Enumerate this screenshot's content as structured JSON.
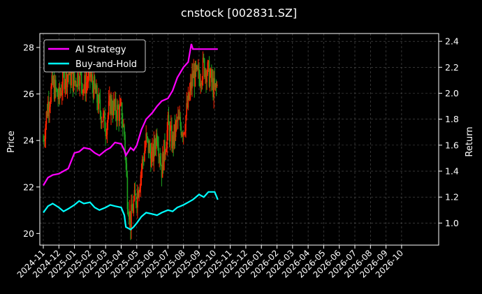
{
  "chart_data": {
    "type": "line",
    "title": "cnstock [002831.SZ]",
    "ylabel_left": "Price",
    "ylabel_right": "Return",
    "ylim_left": [
      19.5,
      28.6
    ],
    "ylim_right": [
      0.83,
      2.46
    ],
    "left_ticks": [
      20,
      22,
      24,
      26,
      28
    ],
    "right_ticks": [
      1.0,
      1.2,
      1.4,
      1.6,
      1.8,
      2.0,
      2.2,
      2.4
    ],
    "x_tick_labels": [
      "2024-11",
      "2024-12",
      "2025-01",
      "2025-02",
      "2025-03",
      "2025-04",
      "2025-05",
      "2025-06",
      "2025-07",
      "2025-08",
      "2025-09",
      "2025-10",
      "2025-11",
      "2025-12",
      "2026-01",
      "2026-02",
      "2026-03",
      "2026-04",
      "2026-05",
      "2026-06",
      "2026-07",
      "2026-08",
      "2026-09",
      "2026-10"
    ],
    "grid": true,
    "legend_position": "top-left",
    "price_candles": {
      "up_color": "#ff2200",
      "down_color": "#1fa01f",
      "closes": [
        [
          0.0,
          24.0
        ],
        [
          0.3,
          25.6
        ],
        [
          0.6,
          26.4
        ],
        [
          1.0,
          25.8
        ],
        [
          1.3,
          26.7
        ],
        [
          1.6,
          26.9
        ],
        [
          2.0,
          26.5
        ],
        [
          2.3,
          26.9
        ],
        [
          2.6,
          26.3
        ],
        [
          3.0,
          26.8
        ],
        [
          3.3,
          26.1
        ],
        [
          3.6,
          25.4
        ],
        [
          4.0,
          24.6
        ],
        [
          4.3,
          25.6
        ],
        [
          4.6,
          25.3
        ],
        [
          5.0,
          25.2
        ],
        [
          5.2,
          24.3
        ],
        [
          5.4,
          21.6
        ],
        [
          5.6,
          20.5
        ],
        [
          5.8,
          21.3
        ],
        [
          6.0,
          21.6
        ],
        [
          6.3,
          22.8
        ],
        [
          6.6,
          24.0
        ],
        [
          7.0,
          23.2
        ],
        [
          7.3,
          24.4
        ],
        [
          7.6,
          22.8
        ],
        [
          8.0,
          24.6
        ],
        [
          8.3,
          23.9
        ],
        [
          8.6,
          24.8
        ],
        [
          9.0,
          24.5
        ],
        [
          9.3,
          25.6
        ],
        [
          9.6,
          26.8
        ],
        [
          10.0,
          26.7
        ],
        [
          10.3,
          27.2
        ],
        [
          10.6,
          26.9
        ],
        [
          11.0,
          26.1
        ],
        [
          11.2,
          26.4
        ]
      ]
    },
    "series": [
      {
        "name": "AI Strategy",
        "color": "#ff00ff",
        "points": [
          [
            0.0,
            1.29
          ],
          [
            0.3,
            1.35
          ],
          [
            0.6,
            1.37
          ],
          [
            1.0,
            1.38
          ],
          [
            1.3,
            1.4
          ],
          [
            1.6,
            1.42
          ],
          [
            2.0,
            1.54
          ],
          [
            2.3,
            1.55
          ],
          [
            2.6,
            1.58
          ],
          [
            3.0,
            1.57
          ],
          [
            3.3,
            1.54
          ],
          [
            3.6,
            1.52
          ],
          [
            4.0,
            1.56
          ],
          [
            4.3,
            1.58
          ],
          [
            4.6,
            1.62
          ],
          [
            5.0,
            1.61
          ],
          [
            5.2,
            1.56
          ],
          [
            5.3,
            1.52
          ],
          [
            5.6,
            1.58
          ],
          [
            5.8,
            1.56
          ],
          [
            6.0,
            1.6
          ],
          [
            6.3,
            1.72
          ],
          [
            6.6,
            1.8
          ],
          [
            7.0,
            1.85
          ],
          [
            7.3,
            1.9
          ],
          [
            7.6,
            1.94
          ],
          [
            8.0,
            1.96
          ],
          [
            8.3,
            2.02
          ],
          [
            8.6,
            2.12
          ],
          [
            9.0,
            2.2
          ],
          [
            9.3,
            2.24
          ],
          [
            9.5,
            2.38
          ],
          [
            9.6,
            2.34
          ],
          [
            10.0,
            2.34
          ],
          [
            11.0,
            2.34
          ],
          [
            11.2,
            2.34
          ]
        ]
      },
      {
        "name": "Buy-and-Hold",
        "color": "#00ffff",
        "points": [
          [
            0.0,
            1.08
          ],
          [
            0.3,
            1.13
          ],
          [
            0.6,
            1.15
          ],
          [
            1.0,
            1.12
          ],
          [
            1.3,
            1.09
          ],
          [
            1.6,
            1.11
          ],
          [
            2.0,
            1.14
          ],
          [
            2.3,
            1.17
          ],
          [
            2.6,
            1.15
          ],
          [
            3.0,
            1.16
          ],
          [
            3.3,
            1.12
          ],
          [
            3.6,
            1.1
          ],
          [
            4.0,
            1.12
          ],
          [
            4.3,
            1.14
          ],
          [
            4.6,
            1.13
          ],
          [
            5.0,
            1.12
          ],
          [
            5.2,
            1.06
          ],
          [
            5.3,
            0.97
          ],
          [
            5.6,
            0.95
          ],
          [
            5.8,
            0.97
          ],
          [
            6.0,
            1.0
          ],
          [
            6.3,
            1.05
          ],
          [
            6.6,
            1.08
          ],
          [
            7.0,
            1.07
          ],
          [
            7.3,
            1.06
          ],
          [
            7.6,
            1.08
          ],
          [
            8.0,
            1.1
          ],
          [
            8.3,
            1.09
          ],
          [
            8.6,
            1.12
          ],
          [
            9.0,
            1.14
          ],
          [
            9.3,
            1.16
          ],
          [
            9.6,
            1.18
          ],
          [
            10.0,
            1.22
          ],
          [
            10.3,
            1.2
          ],
          [
            10.6,
            1.24
          ],
          [
            11.0,
            1.24
          ],
          [
            11.2,
            1.18
          ]
        ]
      }
    ]
  }
}
